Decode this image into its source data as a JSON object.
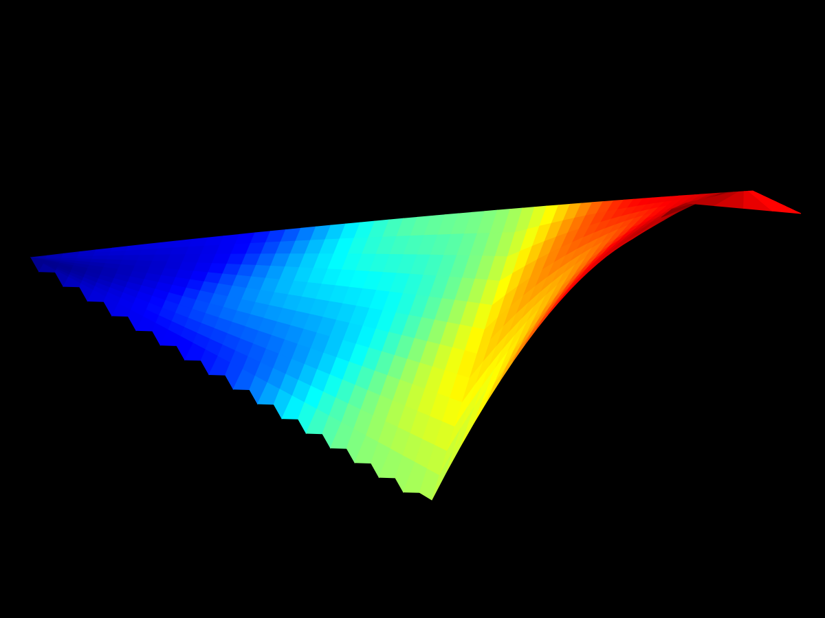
{
  "chart_data": {
    "type": "surface",
    "colormap": "jet",
    "colormap_stops": [
      "#00008f",
      "#0000ff",
      "#00ffff",
      "#ffff00",
      "#ff0000",
      "#800000"
    ],
    "background": "#000000",
    "axes_visible": false,
    "grid": false,
    "legend": "none",
    "value_range": [
      0,
      1
    ],
    "surface": {
      "u_range": [
        0,
        1
      ],
      "v_range": [
        0,
        1
      ],
      "resolution": [
        60,
        12
      ]
    }
  }
}
